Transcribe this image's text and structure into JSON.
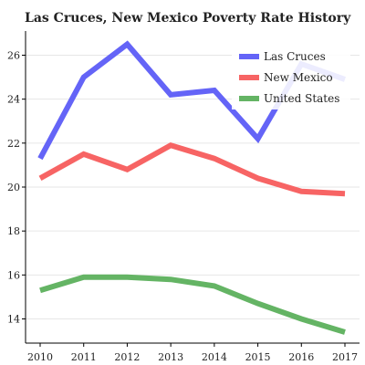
{
  "chart_data": {
    "type": "line",
    "title": "Las Cruces, New Mexico Poverty Rate History",
    "x": [
      "2010",
      "2011",
      "2012",
      "2013",
      "2014",
      "2015",
      "2016",
      "2017"
    ],
    "ylim": [
      12.9,
      27.1
    ],
    "yticks": [
      14,
      16,
      18,
      20,
      22,
      24,
      26
    ],
    "grid": true,
    "legend_position": "top-right",
    "series": [
      {
        "name": "Las Cruces",
        "color": "#6464f7",
        "values": [
          21.3,
          25.0,
          26.5,
          24.2,
          24.4,
          22.2,
          25.6,
          24.9
        ]
      },
      {
        "name": "New Mexico",
        "color": "#f76464",
        "values": [
          20.4,
          21.5,
          20.8,
          21.9,
          21.3,
          20.4,
          19.8,
          19.7
        ]
      },
      {
        "name": "United States",
        "color": "#64b464",
        "values": [
          15.3,
          15.9,
          15.9,
          15.8,
          15.5,
          14.7,
          14.0,
          13.4
        ]
      }
    ]
  }
}
